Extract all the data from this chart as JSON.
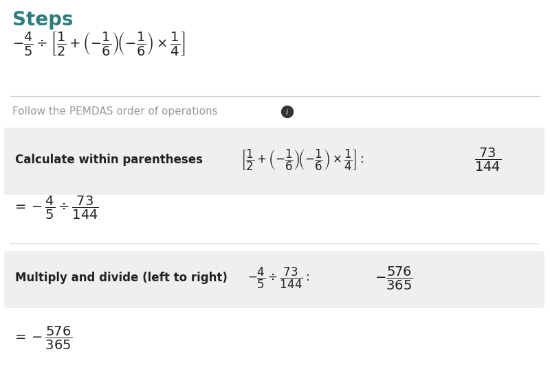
{
  "title": "Steps",
  "title_color": "#2d7d7d",
  "background_color": "#ffffff",
  "box_color": "#efefef",
  "text_color": "#222222",
  "gray_text_color": "#999999",
  "main_expr": "$-\\dfrac{4}{5} \\div \\left[\\dfrac{1}{2} + \\left(-\\dfrac{1}{6}\\right)\\!\\left(-\\dfrac{1}{6}\\right) \\times \\dfrac{1}{4}\\right]$",
  "pemdas_label": "Follow the PEMDAS order of operations",
  "box1_label": "Calculate within parentheses",
  "box1_expr": "$\\left[\\dfrac{1}{2} + \\left(-\\dfrac{1}{6}\\right)\\!\\left(-\\dfrac{1}{6}\\right) \\times \\dfrac{1}{4}\\right]:$",
  "box1_result": "$\\dfrac{73}{144}$",
  "step1_expr": "$= -\\dfrac{4}{5} \\div \\dfrac{73}{144}$",
  "box2_label": "Multiply and divide (left to right)",
  "box2_expr": "$-\\dfrac{4}{5} \\div \\dfrac{73}{144}:$",
  "box2_result": "$-\\dfrac{576}{365}$",
  "final_expr": "$= -\\dfrac{576}{365}$"
}
